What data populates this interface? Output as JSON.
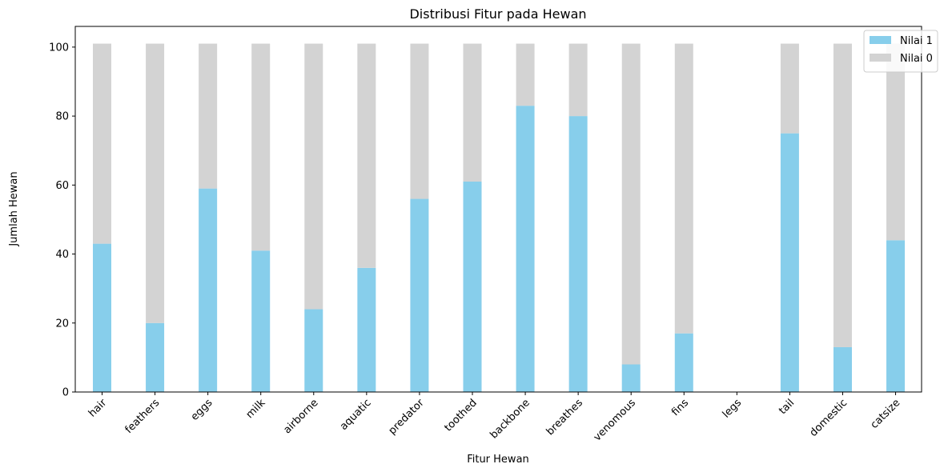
{
  "chart_data": {
    "type": "bar",
    "stacked": true,
    "title": "Distribusi Fitur pada Hewan",
    "xlabel": "Fitur Hewan",
    "ylabel": "Jumlah Hewan",
    "ylim": [
      0,
      106
    ],
    "yticks": [
      0,
      20,
      40,
      60,
      80,
      100
    ],
    "categories": [
      "hair",
      "feathers",
      "eggs",
      "milk",
      "airborne",
      "aquatic",
      "predator",
      "toothed",
      "backbone",
      "breathes",
      "venomous",
      "fins",
      "legs",
      "tail",
      "domestic",
      "catsize"
    ],
    "series": [
      {
        "name": "Nilai 1",
        "color": "#87ceeb",
        "values": [
          43,
          20,
          59,
          41,
          24,
          36,
          56,
          61,
          83,
          80,
          8,
          17,
          0,
          75,
          13,
          44
        ]
      },
      {
        "name": "Nilai 0",
        "color": "#d3d3d3",
        "values": [
          58,
          81,
          42,
          60,
          77,
          65,
          45,
          40,
          18,
          21,
          93,
          84,
          0,
          26,
          88,
          57
        ]
      }
    ],
    "legend_position": "top-right",
    "grid": false
  }
}
